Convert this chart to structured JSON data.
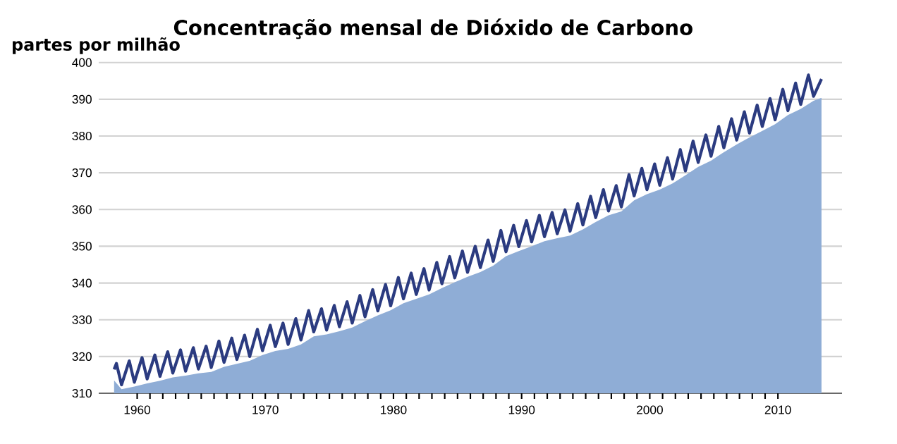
{
  "chart_data": {
    "type": "area",
    "title": "Concentração mensal de Dióxido de Carbono",
    "ylabel": "partes por milhão",
    "xlim": [
      1957,
      2015
    ],
    "xticks": [
      1960,
      1970,
      1980,
      1990,
      2000,
      2010
    ],
    "ylim": [
      310,
      400
    ],
    "yticks": [
      310,
      320,
      330,
      340,
      350,
      360,
      370,
      380,
      390,
      400
    ],
    "grid": "y",
    "marker": "none",
    "line_style": "solid",
    "series": [
      {
        "color": "#8fadd6",
        "x": [
          1958.2,
          1958.78,
          1959.78,
          1960.78,
          1961.78,
          1962.78,
          1963.78,
          1964.78,
          1965.78,
          1966.78,
          1967.78,
          1968.78,
          1969.78,
          1970.78,
          1971.78,
          1972.78,
          1973.78,
          1974.78,
          1975.78,
          1976.78,
          1977.78,
          1978.78,
          1979.78,
          1980.78,
          1981.78,
          1982.78,
          1983.78,
          1984.78,
          1985.78,
          1986.78,
          1987.78,
          1988.78,
          1989.78,
          1990.78,
          1991.78,
          1992.78,
          1993.78,
          1994.78,
          1995.78,
          1996.78,
          1997.78,
          1998.78,
          1999.78,
          2000.78,
          2001.78,
          2002.78,
          2003.78,
          2004.78,
          2005.78,
          2006.78,
          2007.78,
          2008.78,
          2009.78,
          2010.78,
          2011.78,
          2012.78,
          2013.4
        ],
        "values": [
          313.5,
          311.1,
          311.8,
          312.7,
          313.4,
          314.3,
          314.8,
          315.4,
          315.8,
          317.2,
          318.0,
          318.8,
          320.4,
          321.5,
          322.1,
          323.3,
          325.5,
          326.0,
          326.9,
          327.9,
          329.6,
          331.2,
          332.6,
          334.5,
          335.7,
          336.9,
          338.6,
          340.2,
          341.7,
          343.0,
          344.7,
          347.3,
          348.7,
          350.0,
          351.4,
          352.2,
          352.9,
          354.6,
          356.6,
          358.4,
          359.5,
          362.5,
          364.2,
          365.4,
          367.1,
          369.3,
          371.6,
          373.3,
          375.6,
          377.7,
          379.6,
          381.4,
          383.2,
          385.7,
          387.4,
          389.6,
          390.4
        ]
      },
      {
        "type": "line",
        "color": "#2b3b80",
        "x": [
          1958.2,
          1958.38,
          1958.78,
          1959.38,
          1959.78,
          1960.38,
          1960.78,
          1961.38,
          1961.78,
          1962.38,
          1962.78,
          1963.38,
          1963.78,
          1964.38,
          1964.78,
          1965.38,
          1965.78,
          1966.38,
          1966.78,
          1967.38,
          1967.78,
          1968.38,
          1968.78,
          1969.38,
          1969.78,
          1970.38,
          1970.78,
          1971.38,
          1971.78,
          1972.38,
          1972.78,
          1973.38,
          1973.78,
          1974.38,
          1974.78,
          1975.38,
          1975.78,
          1976.38,
          1976.78,
          1977.38,
          1977.78,
          1978.38,
          1978.78,
          1979.38,
          1979.78,
          1980.38,
          1980.78,
          1981.38,
          1981.78,
          1982.38,
          1982.78,
          1983.38,
          1983.78,
          1984.38,
          1984.78,
          1985.38,
          1985.78,
          1986.38,
          1986.78,
          1987.38,
          1987.78,
          1988.38,
          1988.78,
          1989.38,
          1989.78,
          1990.38,
          1990.78,
          1991.38,
          1991.78,
          1992.38,
          1992.78,
          1993.38,
          1993.78,
          1994.38,
          1994.78,
          1995.38,
          1995.78,
          1996.38,
          1996.78,
          1997.38,
          1997.78,
          1998.38,
          1998.78,
          1999.38,
          1999.78,
          2000.38,
          2000.78,
          2001.38,
          2001.78,
          2002.38,
          2002.78,
          2003.38,
          2003.78,
          2004.38,
          2004.78,
          2005.38,
          2005.78,
          2006.38,
          2006.78,
          2007.38,
          2007.78,
          2008.38,
          2008.78,
          2009.38,
          2009.78,
          2010.38,
          2010.78,
          2011.38,
          2011.78,
          2012.38,
          2012.78,
          2013.4
        ],
        "values": [
          316.5,
          318.1,
          312.3,
          318.8,
          313.0,
          319.7,
          313.9,
          320.4,
          314.6,
          321.3,
          315.5,
          321.8,
          316.0,
          322.4,
          316.6,
          322.8,
          317.0,
          324.2,
          318.4,
          325.0,
          319.2,
          325.8,
          320.0,
          327.4,
          321.6,
          328.5,
          322.7,
          329.1,
          323.3,
          330.3,
          324.5,
          332.5,
          326.7,
          333.0,
          327.2,
          333.9,
          328.1,
          334.9,
          329.1,
          336.6,
          330.8,
          338.2,
          332.4,
          339.6,
          333.8,
          341.5,
          335.7,
          342.7,
          336.9,
          343.9,
          338.1,
          345.6,
          339.8,
          347.2,
          341.4,
          348.7,
          342.9,
          350.0,
          344.2,
          351.7,
          345.9,
          354.3,
          348.5,
          355.7,
          349.9,
          357.0,
          351.2,
          358.4,
          352.6,
          359.2,
          353.4,
          359.9,
          354.1,
          361.6,
          355.8,
          363.6,
          357.8,
          365.4,
          359.6,
          366.5,
          360.7,
          369.5,
          363.7,
          371.2,
          365.4,
          372.4,
          366.6,
          374.1,
          368.3,
          376.3,
          370.5,
          378.6,
          372.8,
          380.3,
          374.5,
          382.6,
          376.8,
          384.7,
          378.9,
          386.6,
          380.8,
          388.4,
          382.6,
          390.2,
          384.4,
          392.7,
          386.9,
          394.4,
          388.6,
          396.6,
          390.8,
          395.5
        ]
      }
    ]
  }
}
